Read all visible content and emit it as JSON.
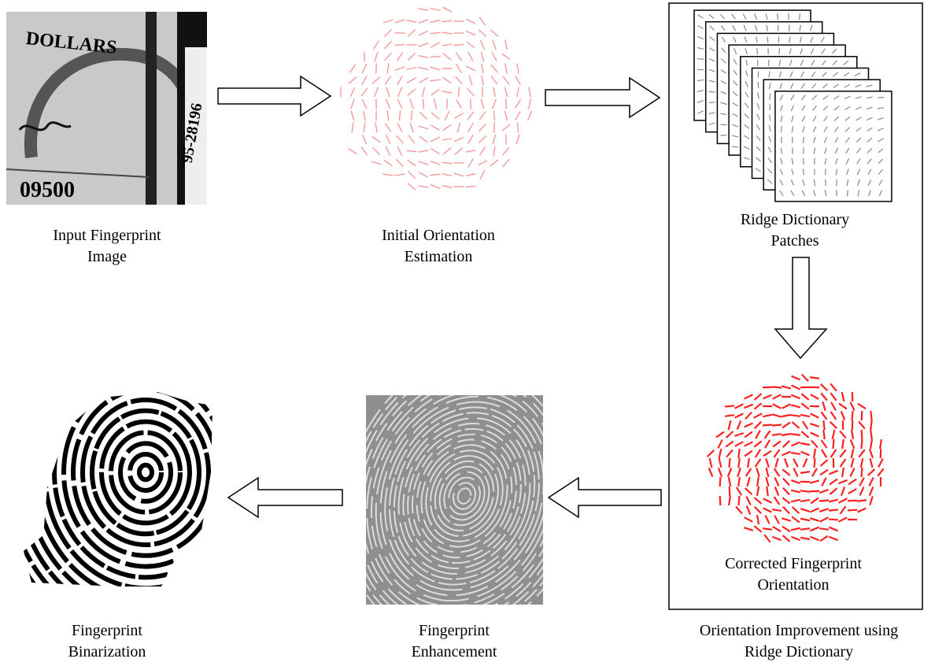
{
  "nodes": [
    {
      "label": [
        "Input Fingerprint",
        "Image"
      ]
    },
    {
      "label": [
        "Initial Orientation",
        "Estimation"
      ]
    },
    {
      "label": [
        "Ridge Dictionary",
        "Patches"
      ]
    },
    {
      "label": [
        "Corrected Fingerprint",
        "Orientation"
      ]
    },
    {
      "label": [
        "Fingerprint",
        "Enhancement"
      ]
    },
    {
      "label": [
        "Fingerprint",
        "Binarization"
      ]
    }
  ],
  "group": {
    "label": [
      "Orientation Improvement using",
      "Ridge Dictionary"
    ]
  },
  "input_image_text": {
    "top": "DOLLARS",
    "bottom": "09500",
    "side": "95-28196"
  }
}
